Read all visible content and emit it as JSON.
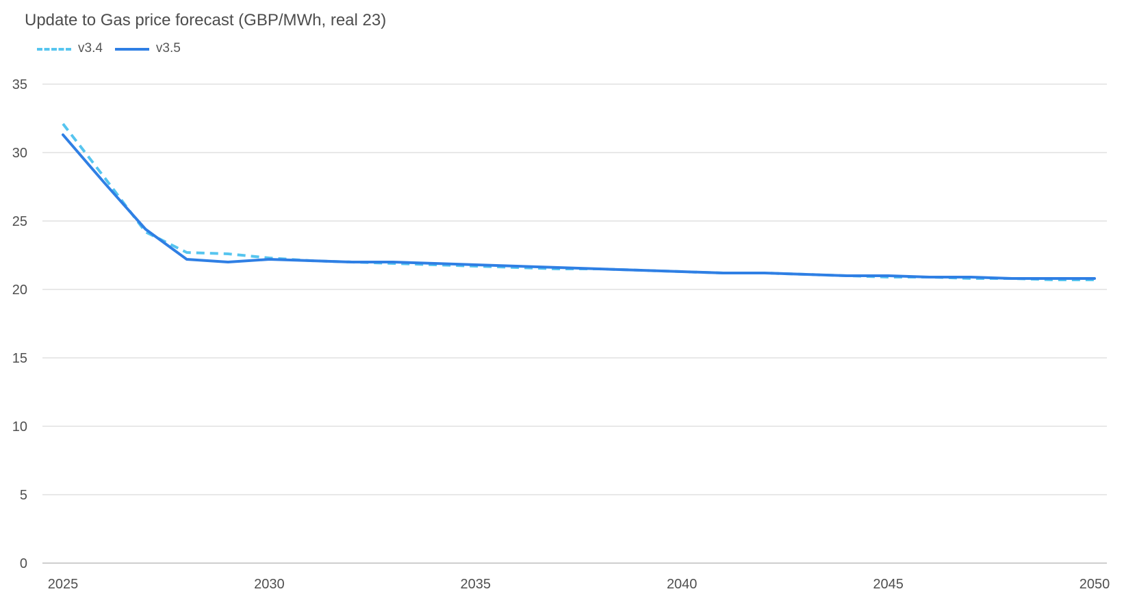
{
  "chart_data": {
    "type": "line",
    "title": "Update to Gas price forecast (GBP/MWh, real 23)",
    "xlabel": "",
    "ylabel": "",
    "x": [
      2025,
      2026,
      2027,
      2028,
      2029,
      2030,
      2031,
      2032,
      2033,
      2034,
      2035,
      2036,
      2037,
      2038,
      2039,
      2040,
      2041,
      2042,
      2043,
      2044,
      2045,
      2046,
      2047,
      2048,
      2049,
      2050
    ],
    "x_ticks": [
      "2025",
      "2030",
      "2035",
      "2040",
      "2045",
      "2050"
    ],
    "y_ticks": [
      "0",
      "5",
      "10",
      "15",
      "20",
      "25",
      "30",
      "35"
    ],
    "xlim": [
      2025,
      2050
    ],
    "ylim": [
      0,
      35
    ],
    "grid": true,
    "legend_position": "top-left",
    "series": [
      {
        "name": "v3.4",
        "style": "dashed",
        "color": "#56c5ef",
        "values": [
          32.1,
          28.2,
          24.2,
          22.7,
          22.6,
          22.3,
          22.1,
          22.0,
          21.9,
          21.8,
          21.7,
          21.6,
          21.5,
          21.5,
          21.4,
          21.3,
          21.2,
          21.2,
          21.1,
          21.0,
          20.9,
          20.9,
          20.8,
          20.8,
          20.7,
          20.7
        ]
      },
      {
        "name": "v3.5",
        "style": "solid",
        "color": "#2f7fe4",
        "values": [
          31.3,
          27.8,
          24.4,
          22.2,
          22.0,
          22.2,
          22.1,
          22.0,
          22.0,
          21.9,
          21.8,
          21.7,
          21.6,
          21.5,
          21.4,
          21.3,
          21.2,
          21.2,
          21.1,
          21.0,
          21.0,
          20.9,
          20.9,
          20.8,
          20.8,
          20.8
        ]
      }
    ]
  }
}
